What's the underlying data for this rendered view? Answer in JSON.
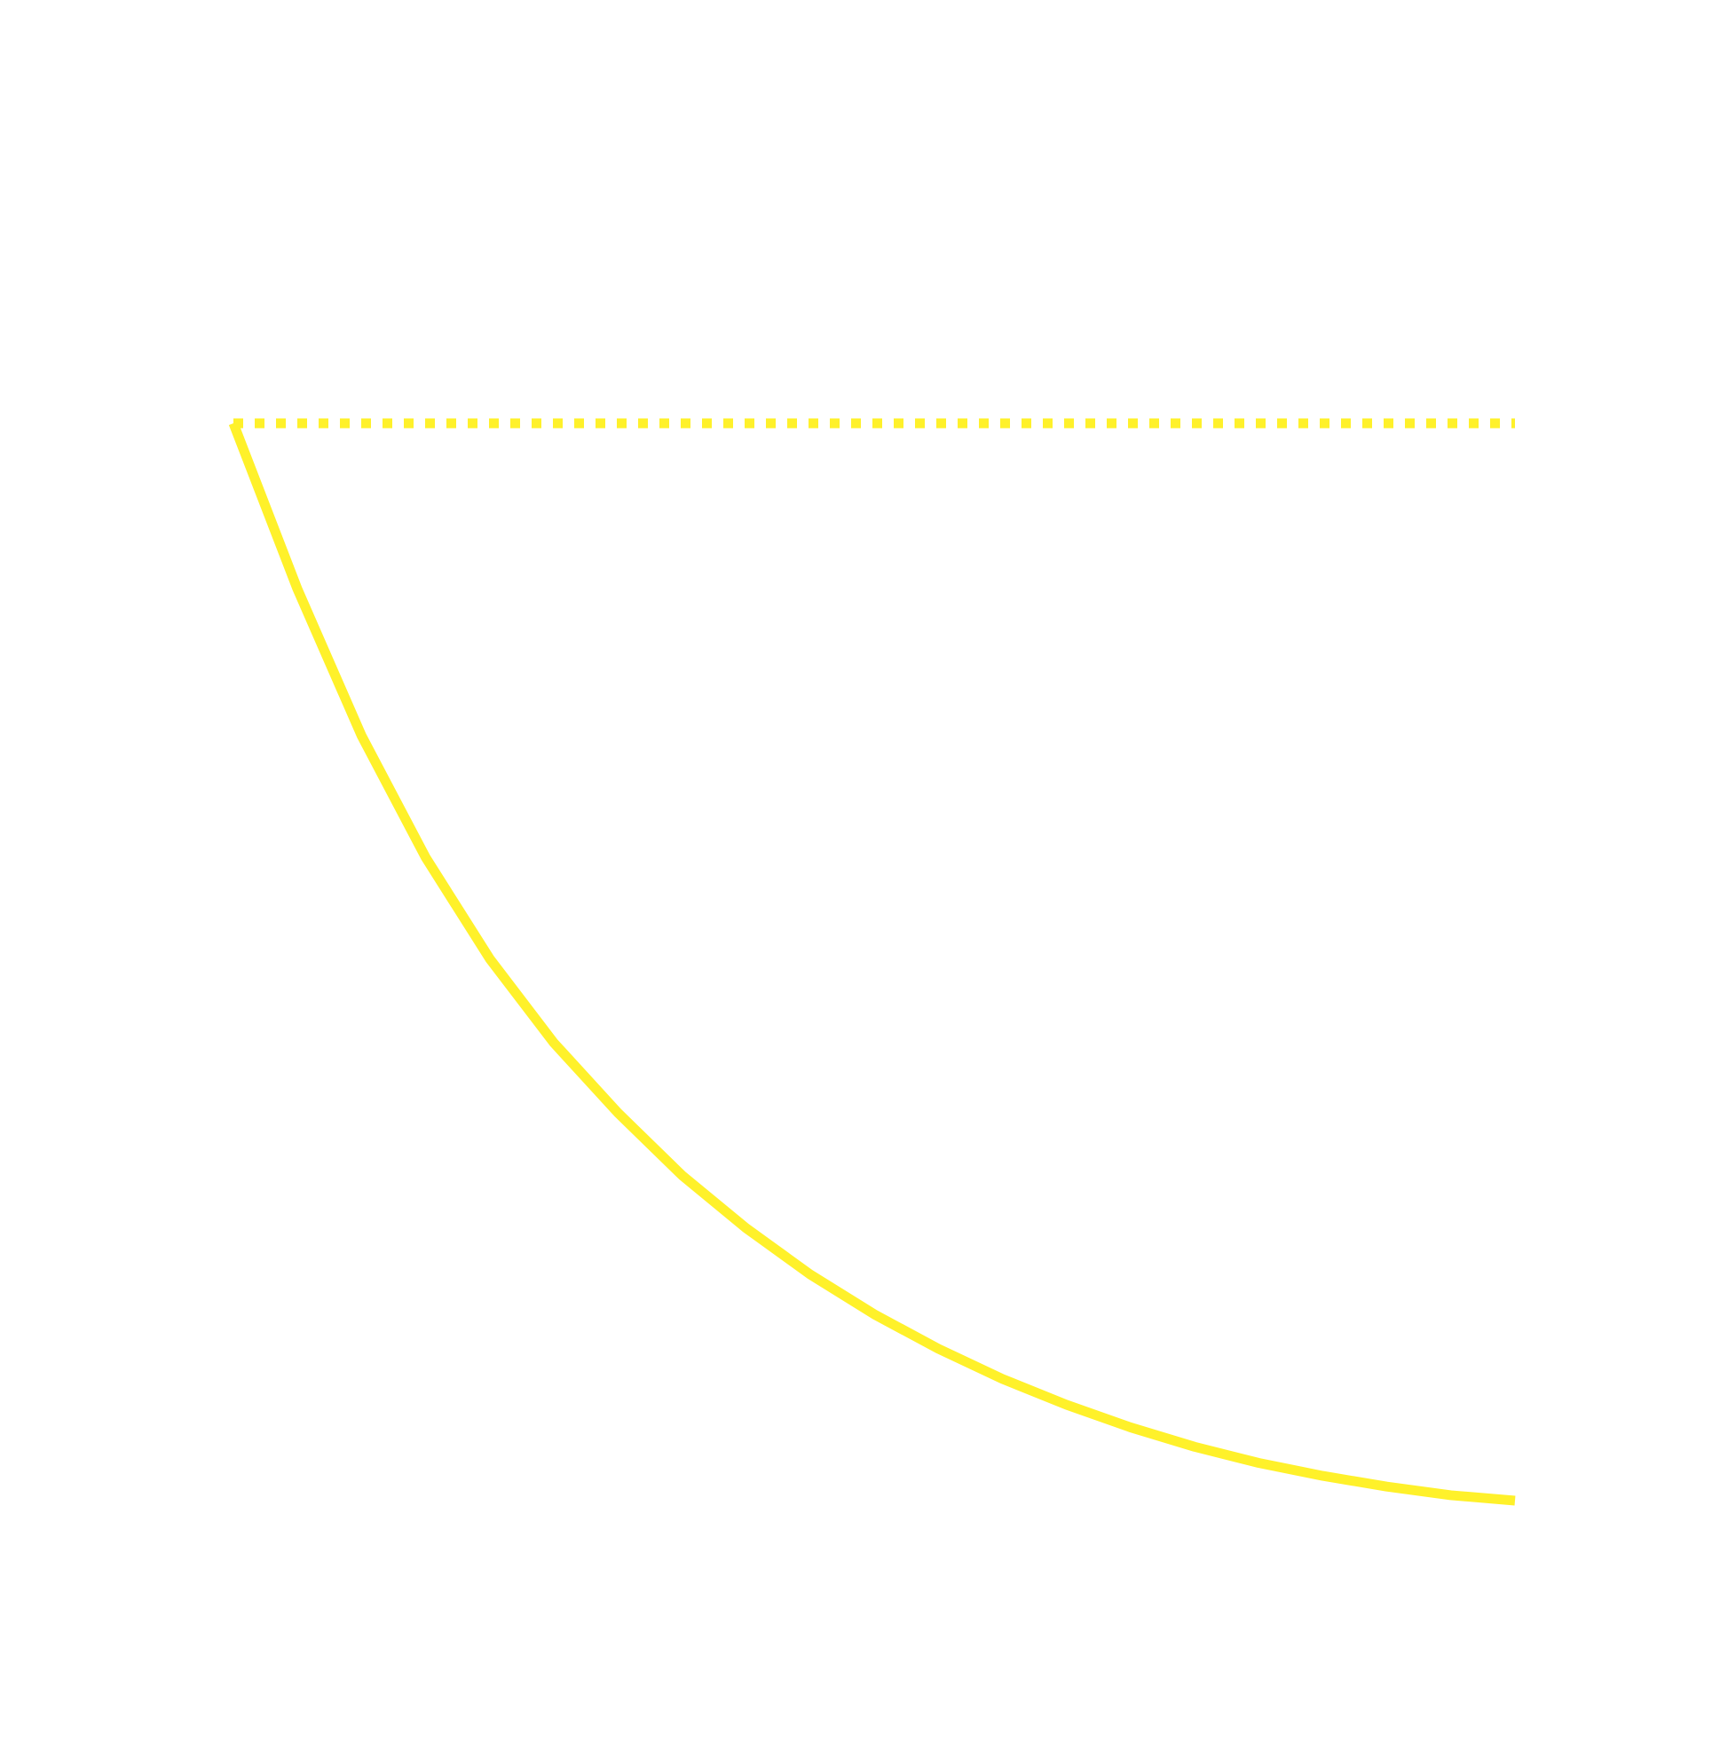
{
  "chart_data": {
    "type": "line",
    "title": "",
    "xlabel": "",
    "ylabel": "",
    "grid": false,
    "legend": "none",
    "xlim": [
      0,
      1
    ],
    "ylim": [
      0,
      1
    ],
    "series": [
      {
        "style": "solid",
        "color": "#FFF12A",
        "points": [
          [
            0.0,
            1.0
          ],
          [
            0.05,
            0.846
          ],
          [
            0.1,
            0.71
          ],
          [
            0.15,
            0.597
          ],
          [
            0.2,
            0.503
          ],
          [
            0.25,
            0.425
          ],
          [
            0.3,
            0.36
          ],
          [
            0.35,
            0.302
          ],
          [
            0.4,
            0.253
          ],
          [
            0.45,
            0.21
          ],
          [
            0.5,
            0.173
          ],
          [
            0.55,
            0.141
          ],
          [
            0.6,
            0.113
          ],
          [
            0.65,
            0.089
          ],
          [
            0.7,
            0.068
          ],
          [
            0.75,
            0.05
          ],
          [
            0.8,
            0.035
          ],
          [
            0.85,
            0.023
          ],
          [
            0.9,
            0.013
          ],
          [
            0.95,
            0.005
          ],
          [
            1.0,
            0.0
          ]
        ]
      },
      {
        "style": "dotted",
        "color": "#FFF12A",
        "points": [
          [
            0.0,
            1.0
          ],
          [
            1.0,
            1.0
          ]
        ]
      }
    ]
  }
}
